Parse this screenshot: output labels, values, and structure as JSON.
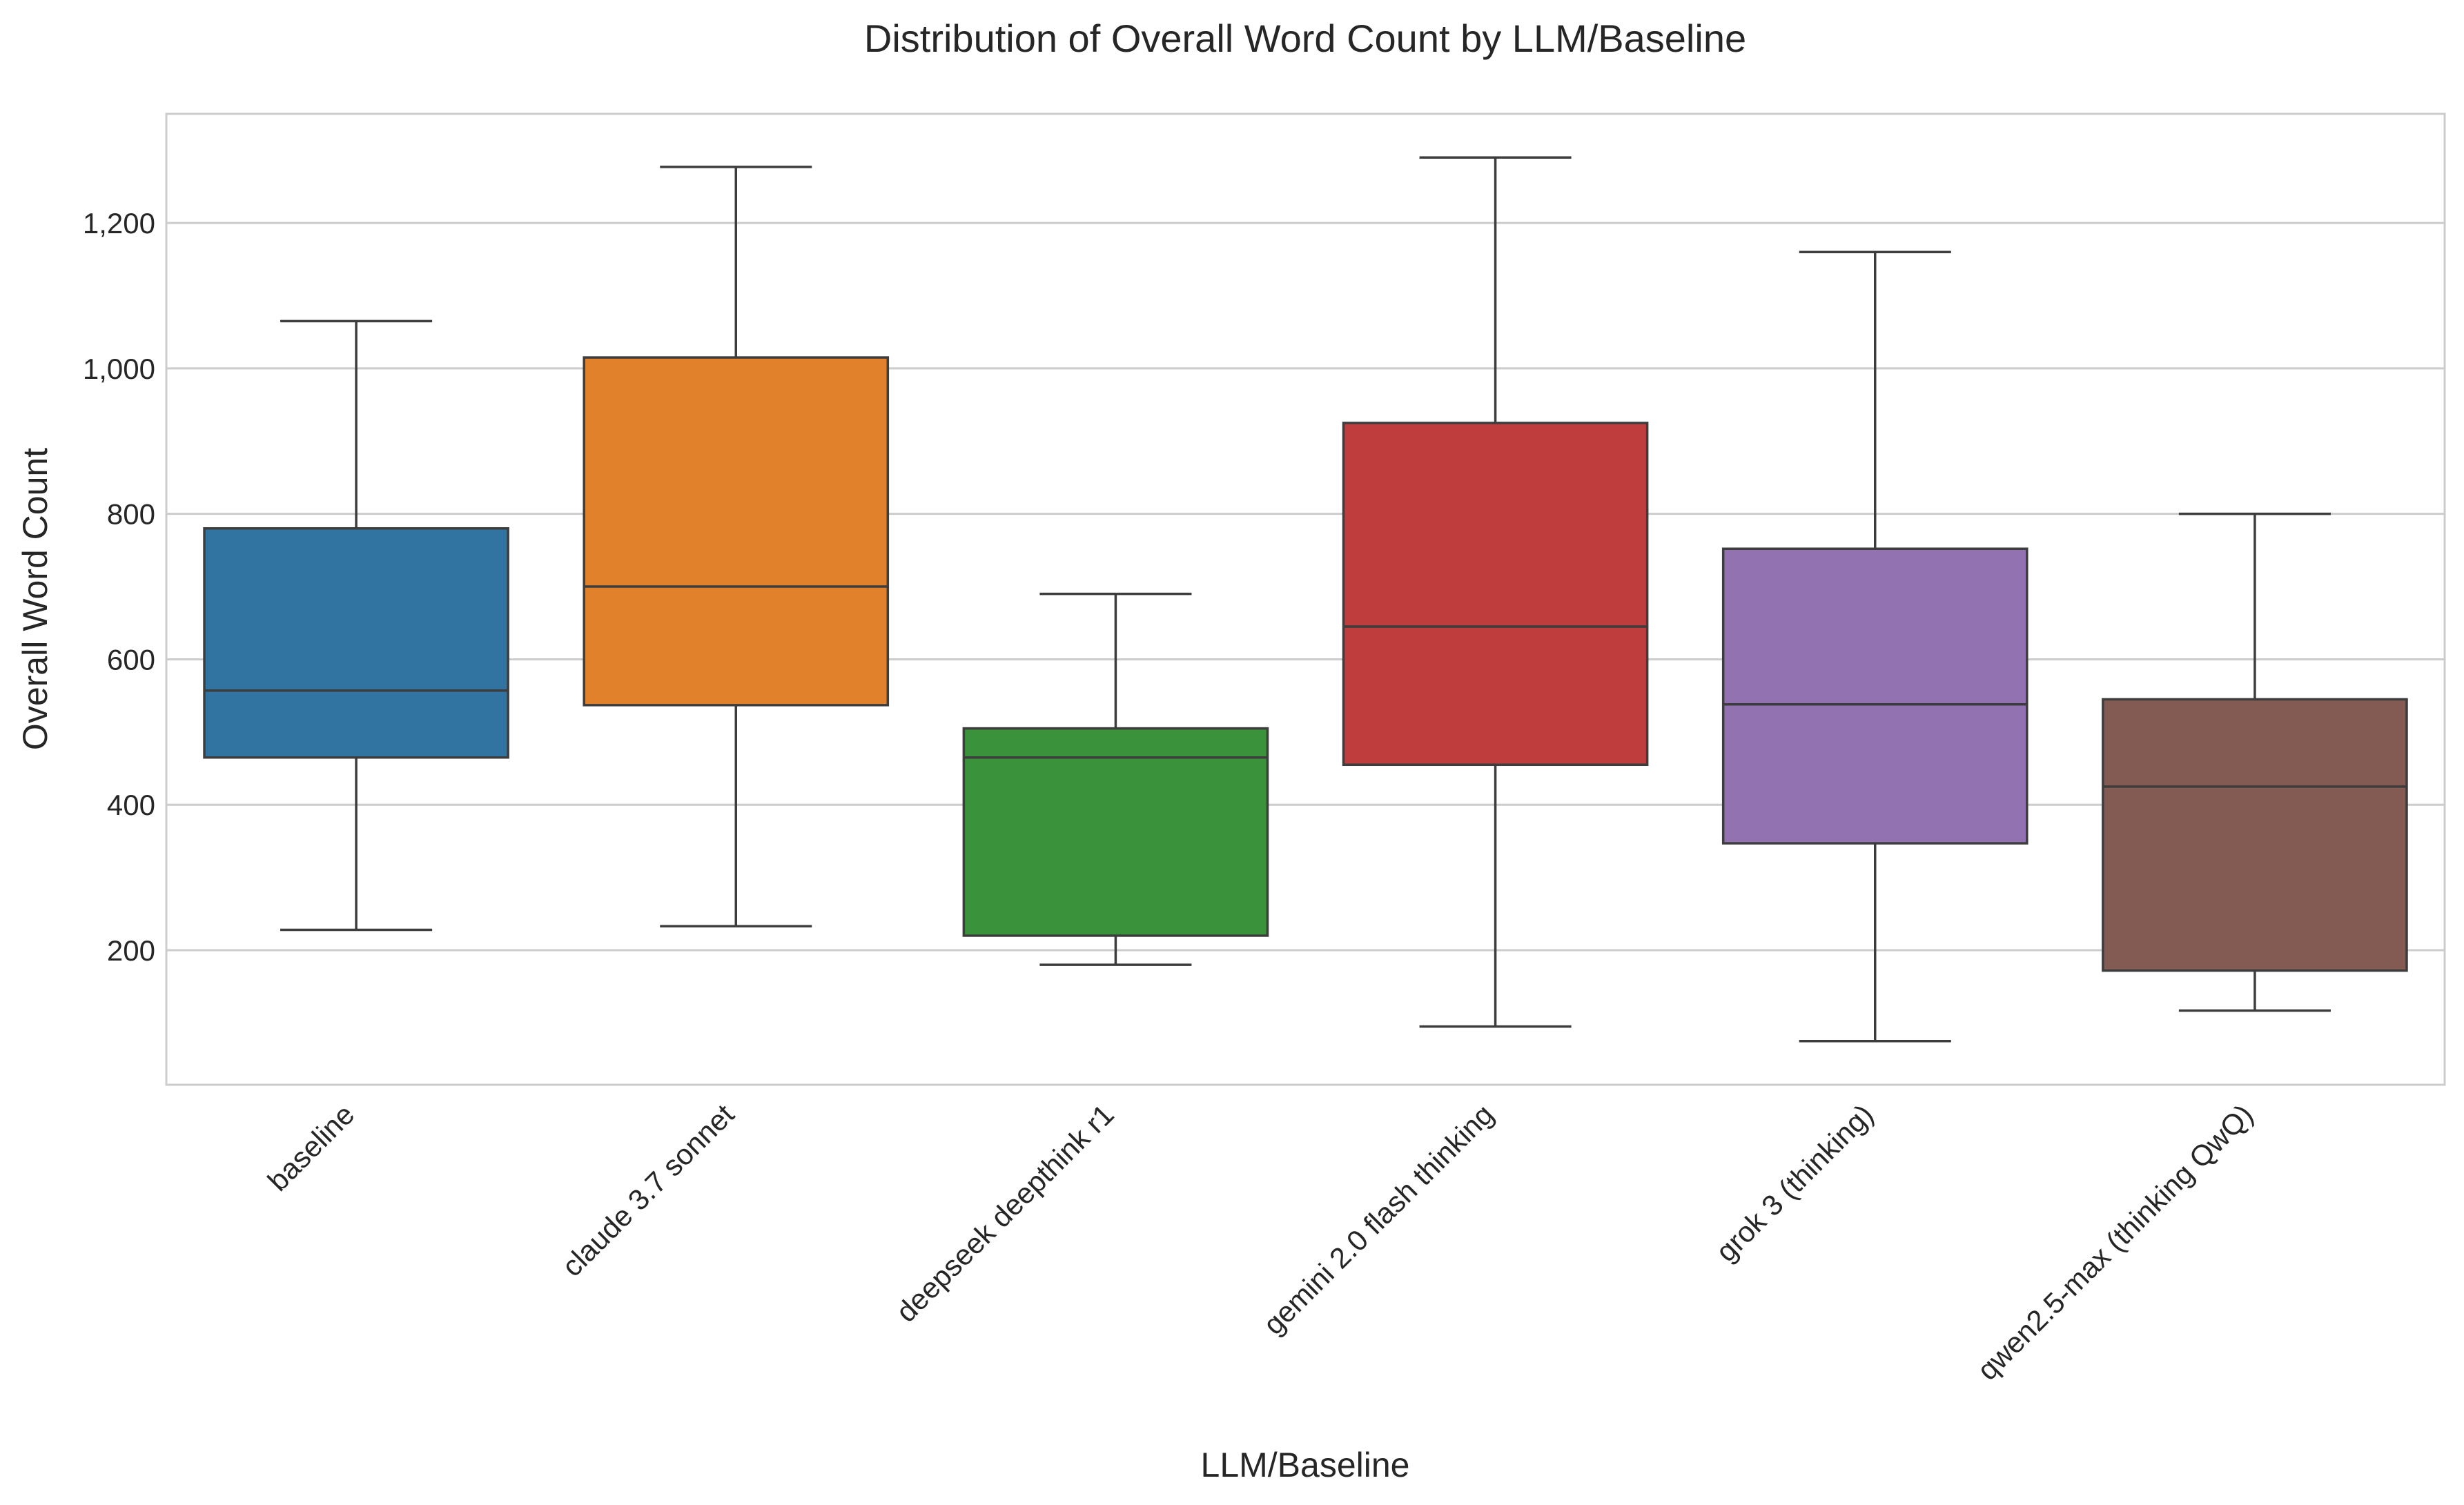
{
  "chart_data": {
    "type": "box",
    "title": "Distribution of Overall Word Count by LLM/Baseline",
    "xlabel": "LLM/Baseline",
    "ylabel": "Overall Word Count",
    "ylim": [
      15,
      1350
    ],
    "yticks": [
      200,
      400,
      600,
      800,
      1000,
      1200
    ],
    "ytick_labels": [
      "200",
      "400",
      "600",
      "800",
      "1,000",
      "1,200"
    ],
    "grid": true,
    "categories": [
      "baseline",
      "claude 3.7 sonnet",
      "deepseek deepthink r1",
      "gemini 2.0 flash thinking",
      "grok 3 (thinking)",
      "qwen2.5-max (thinking QwQ)"
    ],
    "series": [
      {
        "category": "baseline",
        "min": 228,
        "q1": 465,
        "median": 557,
        "q3": 780,
        "max": 1065,
        "color": "#3274a1"
      },
      {
        "category": "claude 3.7 sonnet",
        "min": 233,
        "q1": 537,
        "median": 700,
        "q3": 1015,
        "max": 1277,
        "color": "#e1812c"
      },
      {
        "category": "deepseek deepthink r1",
        "min": 180,
        "q1": 220,
        "median": 465,
        "q3": 505,
        "max": 690,
        "color": "#3a923a"
      },
      {
        "category": "gemini 2.0 flash thinking",
        "min": 95,
        "q1": 455,
        "median": 645,
        "q3": 925,
        "max": 1290,
        "color": "#c03d3e"
      },
      {
        "category": "grok 3 (thinking)",
        "min": 75,
        "q1": 347,
        "median": 538,
        "q3": 752,
        "max": 1160,
        "color": "#9372b2"
      },
      {
        "category": "qwen2.5-max (thinking QwQ)",
        "min": 117,
        "q1": 172,
        "median": 425,
        "q3": 545,
        "max": 800,
        "color": "#845b53"
      }
    ]
  }
}
